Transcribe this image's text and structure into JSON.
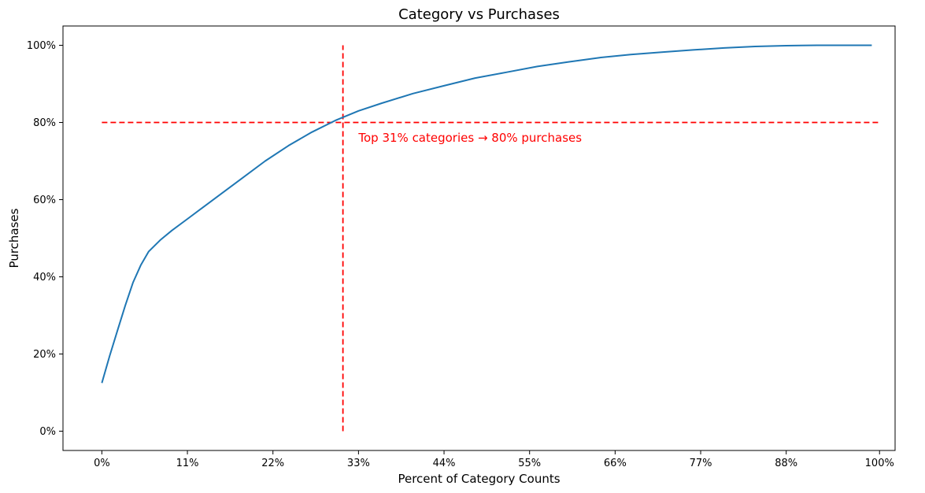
{
  "chart_data": {
    "type": "line",
    "title": "Category vs Purchases",
    "xlabel": "Percent of Category Counts",
    "ylabel": "Purchases",
    "xlim": [
      -5,
      102
    ],
    "ylim": [
      -5,
      105
    ],
    "x_ticks": [
      0,
      11,
      22,
      33,
      44,
      55,
      66,
      77,
      88,
      100
    ],
    "x_tick_labels": [
      "0%",
      "11%",
      "22%",
      "33%",
      "44%",
      "55%",
      "66%",
      "77%",
      "88%",
      "100%"
    ],
    "y_ticks": [
      0,
      20,
      40,
      60,
      80,
      100
    ],
    "y_tick_labels": [
      "0%",
      "20%",
      "40%",
      "60%",
      "80%",
      "100%"
    ],
    "grid": false,
    "series": [
      {
        "color": "#1f77b4",
        "x": [
          0,
          1,
          2,
          3,
          4,
          5,
          6,
          7.5,
          9,
          11,
          13,
          15,
          18,
          21,
          24,
          27,
          30,
          33,
          36,
          40,
          44,
          48,
          52,
          56,
          60,
          64,
          68,
          72,
          76,
          80,
          84,
          88,
          92,
          96,
          99
        ],
        "y": [
          12.5,
          19.5,
          26,
          32.5,
          38.5,
          43,
          46.5,
          49.5,
          52,
          55,
          58,
          61,
          65.5,
          70,
          74,
          77.5,
          80.5,
          83,
          85,
          87.5,
          89.5,
          91.5,
          93,
          94.5,
          95.7,
          96.8,
          97.6,
          98.2,
          98.8,
          99.3,
          99.7,
          99.9,
          100,
          100,
          100
        ]
      }
    ],
    "reference_lines": [
      {
        "orientation": "horizontal",
        "value": 80,
        "from": 0,
        "to": 100,
        "color": "#ff0000",
        "style": "dashed"
      },
      {
        "orientation": "vertical",
        "value": 31,
        "from": 0,
        "to": 100,
        "color": "#ff0000",
        "style": "dashed"
      }
    ],
    "annotation": {
      "text": "Top 31% categories → 80% purchases",
      "x": 33,
      "y": 75,
      "color": "#ff0000"
    }
  }
}
